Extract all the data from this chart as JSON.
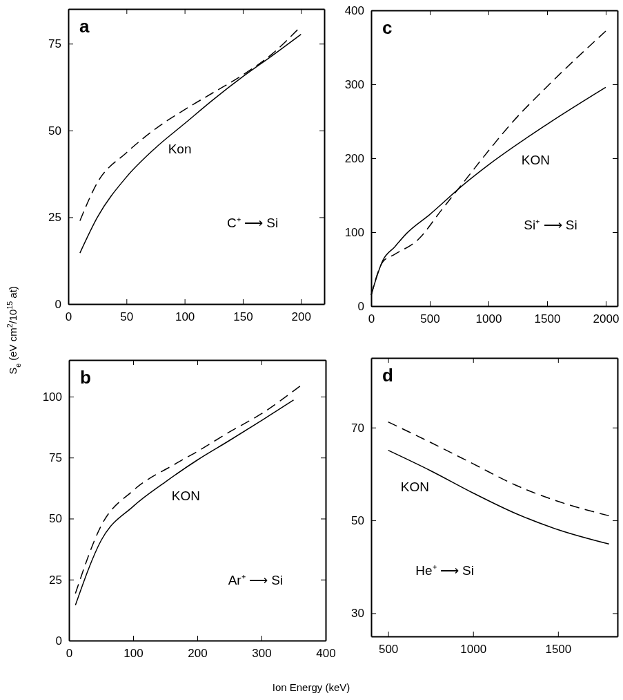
{
  "chart_data": [
    {
      "type": "line",
      "annotations": [
        "a",
        "C⁺ ⟶ Si"
      ],
      "xlim": [
        0,
        220
      ],
      "xticks": [
        0,
        50,
        100,
        150,
        200
      ],
      "ylim": [
        0,
        85
      ],
      "yticks": [
        0,
        25,
        50,
        75
      ],
      "series": [
        {
          "name": "Kon",
          "color": "#000000",
          "line_style": "solid",
          "x": [
            10,
            25,
            50,
            75,
            100,
            125,
            150,
            175,
            200
          ],
          "values": [
            14.7,
            25,
            36.6,
            45,
            52,
            59,
            65.5,
            71.5,
            77.7
          ]
        },
        {
          "color": "#000000",
          "line_style": "dashed",
          "x": [
            10,
            25,
            50,
            75,
            100,
            125,
            150,
            175,
            197
          ],
          "values": [
            24,
            35,
            43.6,
            50.5,
            56,
            61,
            66,
            72,
            79
          ]
        }
      ]
    },
    {
      "type": "line",
      "annotations": [
        "c",
        "Si⁺ ⟶ Si"
      ],
      "xlim": [
        0,
        2100
      ],
      "xticks": [
        0,
        500,
        1000,
        1500,
        2000
      ],
      "ylim": [
        0,
        400
      ],
      "yticks": [
        0,
        100,
        200,
        300,
        400
      ],
      "series": [
        {
          "name": "KON",
          "color": "#000000",
          "line_style": "solid",
          "x": [
            0,
            100,
            200,
            300,
            500,
            800,
            1000,
            1500,
            2000
          ],
          "values": [
            15,
            62,
            80,
            98,
            124,
            166,
            191,
            246,
            296
          ]
        },
        {
          "color": "#000000",
          "line_style": "dashed",
          "x": [
            0,
            100,
            200,
            400,
            600,
            800,
            1000,
            1200,
            1500,
            2000
          ],
          "values": [
            15,
            60,
            70,
            90,
            130,
            170,
            210,
            248,
            297,
            372
          ]
        }
      ]
    },
    {
      "type": "line",
      "annotations": [
        "b",
        "Ar⁺ ⟶ Si"
      ],
      "xlabel": "Ion Energy (keV)",
      "ylabel": "S$_{e}$ (eV cm$^{2}$/10$^{15}$ at)",
      "xlim": [
        0,
        400
      ],
      "xticks": [
        0,
        100,
        200,
        300,
        400
      ],
      "ylim": [
        0,
        115
      ],
      "yticks": [
        0,
        25,
        50,
        75,
        100
      ],
      "series": [
        {
          "name": "KON",
          "color": "#000000",
          "line_style": "solid",
          "x": [
            10,
            50,
            100,
            150,
            200,
            250,
            300,
            350
          ],
          "values": [
            14.5,
            41,
            55,
            65,
            74,
            82,
            90.2,
            98.6
          ]
        },
        {
          "color": "#000000",
          "line_style": "dashed",
          "x": [
            10,
            50,
            100,
            165,
            200,
            250,
            300,
            360
          ],
          "values": [
            19.3,
            47,
            61.5,
            72.3,
            77.5,
            85.5,
            93,
            104.3
          ]
        }
      ]
    },
    {
      "type": "line",
      "annotations": [
        "d",
        "He⁺ ⟶ Si"
      ],
      "xlim": [
        400,
        1850
      ],
      "xticks": [
        500,
        1000,
        1500
      ],
      "ylim": [
        25,
        85
      ],
      "yticks": [
        30,
        50,
        70
      ],
      "series": [
        {
          "name": "KON",
          "color": "#000000",
          "line_style": "solid",
          "x": [
            500,
            750,
            1000,
            1250,
            1500,
            1800
          ],
          "values": [
            65.1,
            60.7,
            55.9,
            51.5,
            48,
            44.9
          ]
        },
        {
          "color": "#000000",
          "line_style": "dashed",
          "x": [
            500,
            750,
            1000,
            1250,
            1500,
            1800
          ],
          "values": [
            71.2,
            66.8,
            62.2,
            57.6,
            54.1,
            51
          ]
        }
      ]
    }
  ]
}
